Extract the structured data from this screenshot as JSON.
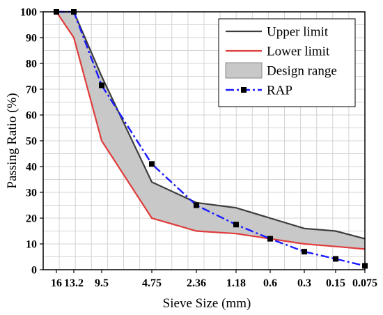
{
  "chart_data": {
    "type": "line",
    "xlabel": "Sieve Size (mm)",
    "ylabel": "Passing Ratio (%)",
    "x_categories": [
      "16",
      "13.2",
      "9.5",
      "4.75",
      "2.36",
      "1.18",
      "0.6",
      "0.3",
      "0.15",
      "0.075"
    ],
    "ylim": [
      0,
      100
    ],
    "yticks": [
      "0",
      "10",
      "20",
      "30",
      "40",
      "50",
      "60",
      "70",
      "80",
      "90",
      "100"
    ],
    "grid": true,
    "legend_position": "top-right",
    "series": [
      {
        "name": "Upper limit",
        "style": "line",
        "color": "#3d3d3d",
        "values": [
          100,
          100,
          75,
          34,
          26,
          24,
          20,
          16,
          15,
          12
        ]
      },
      {
        "name": "Lower limit",
        "style": "line",
        "color": "#e03c3c",
        "values": [
          100,
          90,
          50,
          20,
          15,
          14,
          12,
          10,
          9,
          8
        ]
      },
      {
        "name": "Design range",
        "style": "band",
        "color": "#c8c8c8",
        "between": [
          "Upper limit",
          "Lower limit"
        ]
      },
      {
        "name": "RAP",
        "style": "dash-dot-markers",
        "color": "#1a1aff",
        "marker_color": "#000000",
        "values": [
          100,
          100,
          71.5,
          41,
          25,
          17.5,
          12,
          7,
          4.2,
          1.5
        ]
      }
    ]
  }
}
